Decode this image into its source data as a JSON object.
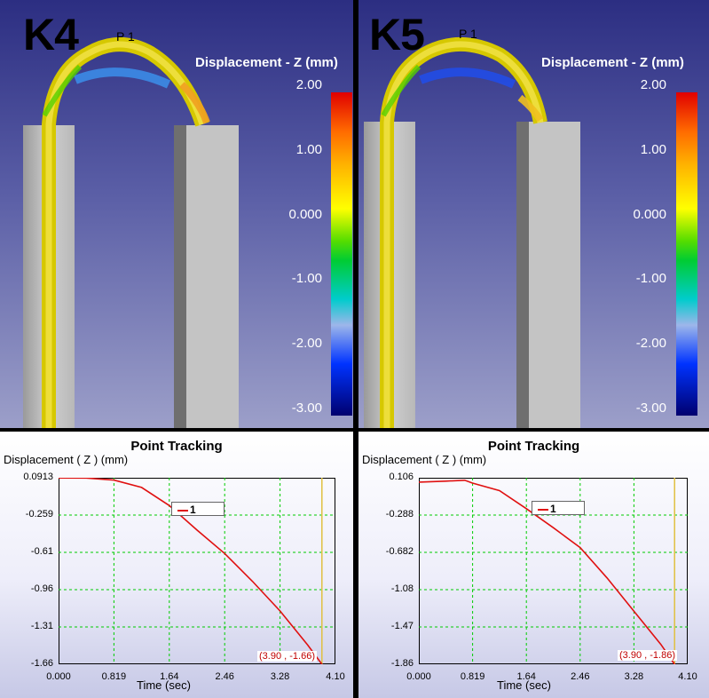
{
  "panels": [
    {
      "title": "K4",
      "point_label": "P 1",
      "scale_label": "Displacement - Z (mm)",
      "scale_ticks": [
        "2.00",
        "1.00",
        "0.000",
        "-1.00",
        "-2.00",
        "-3.00"
      ],
      "chart_title": "Point Tracking",
      "y_axis_label": "Displacement ( Z )  (mm)",
      "x_axis_label": "Time (sec)",
      "legend_label": "1",
      "cursor_readout": "(3.90 , -1.66)"
    },
    {
      "title": "K5",
      "point_label": "P 1",
      "scale_label": "Displacement - Z (mm)",
      "scale_ticks": [
        "2.00",
        "1.00",
        "0.000",
        "-1.00",
        "-2.00",
        "-3.00"
      ],
      "chart_title": "Point Tracking",
      "y_axis_label": "Displacement ( Z )  (mm)",
      "x_axis_label": "Time (sec)",
      "legend_label": "1",
      "cursor_readout": "(3.90 , -1.86)"
    }
  ],
  "colors": {
    "curve": "#e01010",
    "grid": "#00cc00",
    "cursor_line": "#e0c040"
  },
  "chart_data": [
    {
      "type": "line",
      "title": "Point Tracking",
      "xlabel": "Time (sec)",
      "ylabel": "Displacement ( Z )  (mm)",
      "xlim": [
        0,
        4.1
      ],
      "ylim": [
        -1.66,
        0.0913
      ],
      "x_ticks": [
        "0.000",
        "0.819",
        "1.64",
        "2.46",
        "3.28",
        "4.10"
      ],
      "y_ticks": [
        "0.0913",
        "-0.259",
        "-0.61",
        "-0.96",
        "-1.31",
        "-1.66"
      ],
      "cursor_x": 3.9,
      "grid": true,
      "series": [
        {
          "name": "1",
          "x": [
            0,
            0.41,
            0.819,
            1.23,
            1.64,
            2.05,
            2.46,
            2.87,
            3.28,
            3.69,
            3.9
          ],
          "y": [
            0.09,
            0.089,
            0.07,
            0.0,
            -0.17,
            -0.4,
            -0.62,
            -0.88,
            -1.16,
            -1.48,
            -1.66
          ]
        }
      ]
    },
    {
      "type": "line",
      "title": "Point Tracking",
      "xlabel": "Time (sec)",
      "ylabel": "Displacement ( Z )  (mm)",
      "xlim": [
        0,
        4.1
      ],
      "ylim": [
        -1.86,
        0.106
      ],
      "x_ticks": [
        "0.000",
        "0.819",
        "1.64",
        "2.46",
        "3.28",
        "4.10"
      ],
      "y_ticks": [
        "0.106",
        "-0.288",
        "-0.682",
        "-1.08",
        "-1.47",
        "-1.86"
      ],
      "cursor_x": 3.9,
      "grid": true,
      "series": [
        {
          "name": "1",
          "x": [
            0,
            0.41,
            0.7,
            0.819,
            1.23,
            1.64,
            2.05,
            2.46,
            2.87,
            3.28,
            3.69,
            3.9
          ],
          "y": [
            0.06,
            0.07,
            0.08,
            0.05,
            -0.03,
            -0.22,
            -0.42,
            -0.63,
            -0.95,
            -1.3,
            -1.65,
            -1.86
          ]
        }
      ]
    }
  ]
}
